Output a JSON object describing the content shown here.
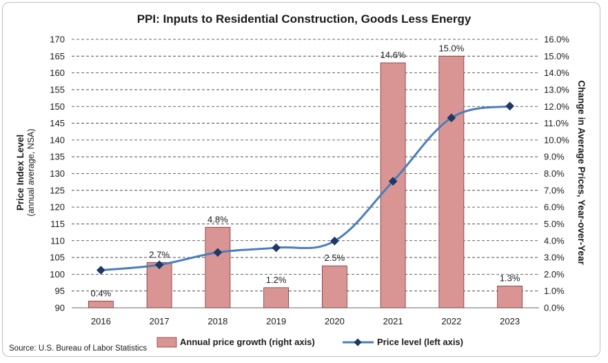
{
  "chart_data": {
    "type": "bar",
    "title": "PPI: Inputs to Residential Construction, Goods Less Energy",
    "categories": [
      "2016",
      "2017",
      "2018",
      "2019",
      "2020",
      "2021",
      "2022",
      "2023"
    ],
    "series": [
      {
        "name": "Annual price growth (right axis)",
        "kind": "bar",
        "axis": "right",
        "color": "#d99594",
        "values": [
          0.4,
          2.7,
          4.8,
          1.2,
          2.5,
          14.6,
          15.0,
          1.3
        ],
        "labels": [
          "0.4%",
          "2.7%",
          "4.8%",
          "1.2%",
          "2.5%",
          "14.6%",
          "15.0%",
          "1.3%"
        ]
      },
      {
        "name": "Price level (left axis)",
        "kind": "line",
        "axis": "left",
        "color": "#4a7ebb",
        "marker_color": "#1f3864",
        "values": [
          101.2,
          102.8,
          106.5,
          107.9,
          109.9,
          127.7,
          146.6,
          150.1
        ]
      }
    ],
    "left_axis": {
      "label": "Price Index Level",
      "sublabel": "(annual average, NSA)",
      "range": [
        90,
        170
      ],
      "ticks": [
        "90",
        "95",
        "100",
        "105",
        "110",
        "115",
        "120",
        "125",
        "130",
        "135",
        "140",
        "145",
        "150",
        "155",
        "160",
        "165",
        "170"
      ]
    },
    "right_axis": {
      "label": "Change in Average Prices, Year-over-Year",
      "range": [
        0,
        16
      ],
      "ticks": [
        "0.0%",
        "1.0%",
        "2.0%",
        "3.0%",
        "4.0%",
        "5.0%",
        "6.0%",
        "7.0%",
        "8.0%",
        "9.0%",
        "10.0%",
        "11.0%",
        "12.0%",
        "13.0%",
        "14.0%",
        "15.0%",
        "16.0%"
      ]
    },
    "grid": "horizontal dashed",
    "legend_position": "bottom",
    "source": "Source: U.S. Bureau of Labor Statistics"
  }
}
